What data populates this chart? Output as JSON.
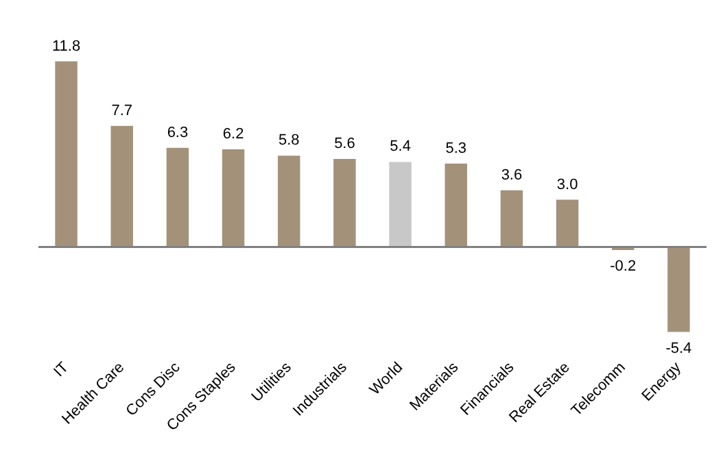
{
  "chart_data": {
    "type": "bar",
    "categories": [
      "IT",
      "Health Care",
      "Cons Disc",
      "Cons Staples",
      "Utilities",
      "Industrials",
      "World",
      "Materials",
      "Financials",
      "Real Estate",
      "Telecomm",
      "Energy"
    ],
    "values": [
      11.8,
      7.7,
      6.3,
      6.2,
      5.8,
      5.6,
      5.4,
      5.3,
      3.6,
      3.0,
      -0.2,
      -5.4
    ],
    "colors": [
      "#a39279",
      "#a39279",
      "#a39279",
      "#a39279",
      "#a39279",
      "#a39279",
      "#c8c8c8",
      "#a39279",
      "#a39279",
      "#a39279",
      "#a39279",
      "#a39279"
    ],
    "value_labels": [
      "11.8",
      "7.7",
      "6.3",
      "6.2",
      "5.8",
      "5.6",
      "5.4",
      "5.3",
      "3.6",
      "3.0",
      "-0.2",
      "-5.4"
    ],
    "grid": false,
    "legend": false
  }
}
